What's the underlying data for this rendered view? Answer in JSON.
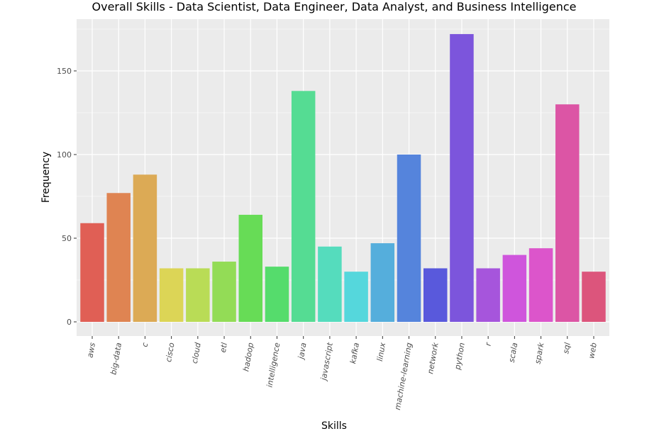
{
  "chart_data": {
    "type": "bar",
    "title": "Overall Skills - Data Scientist, Data Engineer, Data Analyst, and Business Intelligence",
    "xlabel": "Skills",
    "ylabel": "Frequency",
    "ylim": [
      0,
      176
    ],
    "y_ticks": [
      0,
      50,
      100,
      150
    ],
    "grid": true,
    "legend": "none",
    "categories": [
      "aws",
      "big-data",
      "c",
      "cisco",
      "cloud",
      "etl",
      "hadoop",
      "intelligence",
      "java",
      "javascript",
      "kafka",
      "linux",
      "machine-learning",
      "network",
      "python",
      "r",
      "scala",
      "spark",
      "sql",
      "web"
    ],
    "values": [
      59,
      77,
      88,
      32,
      32,
      36,
      64,
      33,
      138,
      45,
      30,
      47,
      100,
      32,
      172,
      32,
      40,
      44,
      130,
      30
    ],
    "colors": [
      "#e05f55",
      "#df8452",
      "#dcaa55",
      "#dcd556",
      "#b9dc56",
      "#93dc56",
      "#67dc56",
      "#55dc6c",
      "#55dc93",
      "#55dcbd",
      "#55d7dc",
      "#55aedc",
      "#5584dc",
      "#5959dc",
      "#7c55dc",
      "#a655dc",
      "#cf55dc",
      "#dc55cb",
      "#dc55a5",
      "#dc557c"
    ]
  }
}
